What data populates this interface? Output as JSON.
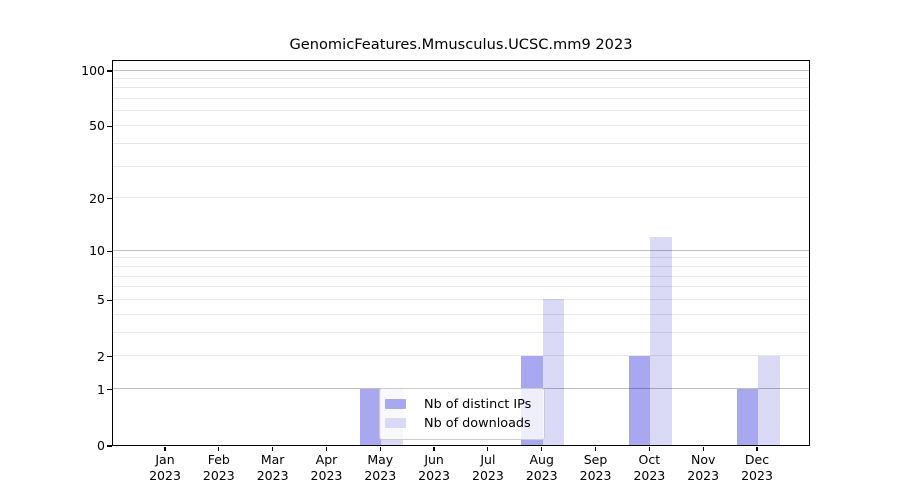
{
  "title": "GenomicFeatures.Mmusculus.UCSC.mm9 2023",
  "chart_data": {
    "type": "bar",
    "title": "GenomicFeatures.Mmusculus.UCSC.mm9 2023",
    "x_categories": [
      "Jan",
      "Feb",
      "Mar",
      "Apr",
      "May",
      "Jun",
      "Jul",
      "Aug",
      "Sep",
      "Oct",
      "Nov",
      "Dec"
    ],
    "x_year": "2023",
    "series": [
      {
        "name": "Nb of distinct IPs",
        "color": "#a8a8f0",
        "values": [
          0,
          0,
          0,
          0,
          1,
          0,
          0,
          2,
          0,
          2,
          0,
          1
        ]
      },
      {
        "name": "Nb of downloads",
        "color": "#dadaf6",
        "values": [
          0,
          0,
          0,
          0,
          1,
          0,
          0,
          5,
          0,
          12,
          0,
          2
        ]
      }
    ],
    "xlabel": "",
    "ylabel": "",
    "y_scale": "log10(1+y)",
    "y_ticks": [
      0,
      1,
      2,
      5,
      10,
      20,
      50,
      100
    ],
    "y_grid_decades": [
      1,
      10,
      100
    ],
    "y_grid_minor": [
      2,
      3,
      4,
      5,
      6,
      7,
      8,
      9,
      20,
      30,
      40,
      50,
      60,
      70,
      80,
      90
    ],
    "ylim": [
      0,
      114.6
    ],
    "grid": "on",
    "legend_position": "lower center",
    "colors": {
      "grid_decade": "rgba(0,0,0,0.25)",
      "grid_minor": "rgba(0,0,0,0.09)",
      "axis": "#000000",
      "legend_border": "#cccccc",
      "legend_bg": "rgba(255,255,255,0.8)"
    }
  }
}
